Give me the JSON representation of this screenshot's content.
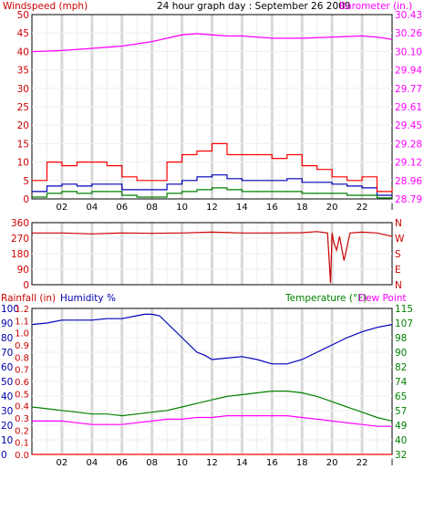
{
  "chart_data": [
    {
      "type": "line",
      "panel": "wind-barometer",
      "title": "24 hour graph day : September 26 2009",
      "left_axis_label": "Windspeed (mph)",
      "right_axis_label": "Barometer (in.)",
      "left_ylim": [
        0,
        50
      ],
      "left_ticks": [
        "50",
        "45",
        "40",
        "35",
        "30",
        "25",
        "20",
        "15",
        "10",
        "5",
        "0"
      ],
      "right_ylim": [
        28.79,
        30.43
      ],
      "right_ticks": [
        "30.43",
        "30.26",
        "30.10",
        "29.94",
        "29.77",
        "29.61",
        "29.45",
        "29.28",
        "29.12",
        "28.96",
        "28.79"
      ],
      "x_ticks": [
        "02",
        "04",
        "06",
        "08",
        "10",
        "12",
        "14",
        "16",
        "18",
        "20",
        "22",
        "l"
      ],
      "xlim": [
        0,
        24
      ],
      "grid": true,
      "colors": {
        "gust": "#ff0000",
        "avg": "#0000bb",
        "lull": "#008000",
        "barometer": "#ff00ff",
        "text_left": "#cc0000",
        "text_title": "#000000"
      },
      "series": [
        {
          "key": "barometer",
          "axis": "right",
          "x": [
            0,
            2,
            4,
            6,
            8,
            9,
            10,
            11,
            12,
            13,
            14,
            16,
            18,
            20,
            22,
            23,
            24
          ],
          "y": [
            30.1,
            30.11,
            30.13,
            30.15,
            30.19,
            30.22,
            30.25,
            30.26,
            30.25,
            30.24,
            30.24,
            30.22,
            30.22,
            30.23,
            30.24,
            30.23,
            30.21
          ]
        },
        {
          "key": "avg",
          "axis": "left",
          "x": [
            0,
            1,
            2,
            3,
            4,
            5,
            6,
            7,
            8,
            9,
            10,
            11,
            12,
            13,
            14,
            15,
            16,
            17,
            18,
            19,
            20,
            21,
            22,
            23,
            24
          ],
          "y": [
            2.0,
            3.5,
            4.0,
            3.5,
            4.0,
            4.0,
            2.5,
            2.5,
            2.5,
            4.0,
            5.0,
            6.0,
            6.5,
            5.5,
            5.0,
            5.0,
            5.0,
            5.5,
            4.5,
            4.5,
            4.0,
            3.5,
            3.0,
            1.0,
            1.0
          ]
        },
        {
          "key": "gust",
          "axis": "left",
          "x": [
            0,
            1,
            2,
            3,
            4,
            5,
            6,
            7,
            8,
            9,
            10,
            11,
            12,
            13,
            14,
            15,
            16,
            17,
            18,
            19,
            20,
            21,
            22,
            23,
            24
          ],
          "y": [
            5,
            10,
            9,
            10,
            10,
            9,
            6,
            5,
            5,
            10,
            12,
            13,
            15,
            12,
            12,
            12,
            11,
            12,
            9,
            8,
            6,
            5,
            6,
            2,
            3
          ]
        },
        {
          "key": "lull",
          "axis": "left",
          "x": [
            0,
            1,
            2,
            3,
            4,
            5,
            6,
            7,
            8,
            9,
            10,
            11,
            12,
            13,
            14,
            15,
            16,
            17,
            18,
            19,
            20,
            21,
            22,
            23,
            24
          ],
          "y": [
            0.5,
            1.5,
            2,
            1.5,
            2,
            2,
            1,
            0.5,
            0.5,
            1.5,
            2,
            2.5,
            3,
            2.5,
            2,
            2,
            2,
            2,
            1.5,
            1.5,
            1.5,
            1,
            1,
            0.3,
            0.3
          ]
        }
      ]
    },
    {
      "type": "line",
      "panel": "wind-direction",
      "ylim": [
        0,
        360
      ],
      "left_ticks": [
        "360",
        "270",
        "180",
        "90",
        "0"
      ],
      "right_ticks": [
        "N",
        "W",
        "S",
        "E",
        "N"
      ],
      "x_ticks": [
        "02",
        "04",
        "06",
        "08",
        "10",
        "12",
        "14",
        "16",
        "18",
        "20",
        "22",
        "l"
      ],
      "xlim": [
        0,
        24
      ],
      "grid": true,
      "colors": {
        "direction": "#cc0000"
      },
      "series": [
        {
          "key": "direction",
          "x": [
            0,
            2,
            4,
            6,
            8,
            10,
            12,
            14,
            16,
            18,
            19,
            19.7,
            19.9,
            20,
            20.1,
            20.3,
            20.5,
            20.8,
            21.2,
            22,
            23,
            24
          ],
          "y": [
            300,
            300,
            295,
            300,
            298,
            300,
            305,
            300,
            300,
            302,
            308,
            300,
            10,
            300,
            250,
            200,
            280,
            140,
            300,
            305,
            300,
            280
          ]
        }
      ]
    },
    {
      "type": "line",
      "panel": "rain-humidity-temperature",
      "left_axis_label_rain": "Rainfall (in)",
      "left_axis_label_humidity": "Humidity %",
      "right_axis_label_temp": "Temperature (°F)",
      "right_axis_label_dew": "Dew Point",
      "humidity_ylim": [
        0,
        100
      ],
      "humidity_ticks": [
        "100",
        "90",
        "80",
        "70",
        "60",
        "50",
        "40",
        "30",
        "20",
        "10",
        "0"
      ],
      "rain_ylim": [
        0,
        1.2
      ],
      "rain_ticks": [
        "1.2",
        "1.1",
        "1.0",
        "0.9",
        "0.8",
        "0.7",
        "0.6",
        "0.5",
        "0.4",
        "0.3",
        "0.2",
        "0.1",
        "0.0"
      ],
      "temp_ylim": [
        32,
        115
      ],
      "temp_ticks": [
        "115",
        "107",
        "98",
        "90",
        "82",
        "74",
        "65",
        "57",
        "49",
        "40",
        "32"
      ],
      "x_ticks": [
        "02",
        "04",
        "06",
        "08",
        "10",
        "12",
        "14",
        "16",
        "18",
        "20",
        "22",
        "l"
      ],
      "xlim": [
        0,
        24
      ],
      "grid": true,
      "colors": {
        "humidity": "#0000bb",
        "temperature": "#008000",
        "dewpoint": "#ff00ff",
        "rainfall": "#ff0000",
        "text_humidity": "#0000aa",
        "text_temp": "#008000",
        "text_dew": "#ff00ff",
        "text_rain": "#cc0000"
      },
      "series": [
        {
          "key": "humidity",
          "axis": "humidity",
          "x": [
            0,
            1,
            2,
            3,
            4,
            5,
            6,
            7,
            7.5,
            8,
            8.5,
            9,
            9.5,
            10,
            10.5,
            11,
            11.5,
            12,
            13,
            14,
            15,
            16,
            17,
            18,
            19,
            20,
            21,
            22,
            23,
            24
          ],
          "y": [
            89,
            90,
            92,
            92,
            92,
            93,
            93,
            95,
            96,
            96,
            95,
            90,
            85,
            80,
            75,
            70,
            68,
            65,
            66,
            67,
            65,
            62,
            62,
            65,
            70,
            75,
            80,
            84,
            87,
            89
          ]
        },
        {
          "key": "temperature",
          "axis": "temp",
          "x": [
            0,
            1,
            2,
            3,
            4,
            5,
            6,
            7,
            8,
            9,
            10,
            11,
            12,
            13,
            14,
            15,
            16,
            17,
            18,
            19,
            20,
            21,
            22,
            23,
            24
          ],
          "y": [
            59,
            58,
            57,
            56,
            55,
            55,
            54,
            55,
            56,
            57,
            59,
            61,
            63,
            65,
            66,
            67,
            68,
            68,
            67,
            65,
            62,
            59,
            56,
            53,
            51
          ]
        },
        {
          "key": "dewpoint",
          "axis": "temp",
          "x": [
            0,
            1,
            2,
            3,
            4,
            5,
            6,
            7,
            8,
            9,
            10,
            11,
            12,
            13,
            14,
            15,
            16,
            17,
            18,
            19,
            20,
            21,
            22,
            23,
            24
          ],
          "y": [
            51,
            51,
            51,
            50,
            49,
            49,
            49,
            50,
            51,
            52,
            52,
            53,
            53,
            54,
            54,
            54,
            54,
            54,
            53,
            52,
            51,
            50,
            49,
            48,
            48
          ]
        },
        {
          "key": "rainfall",
          "axis": "rain",
          "x": [
            0,
            24
          ],
          "y": [
            0,
            0
          ]
        }
      ]
    }
  ]
}
